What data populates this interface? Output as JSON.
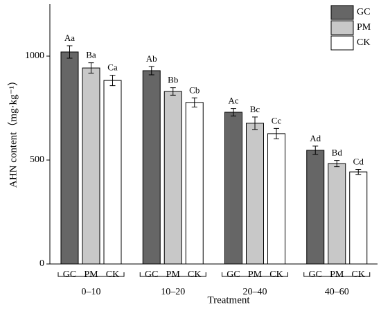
{
  "chart_data": {
    "type": "bar",
    "categories": [
      "0–10",
      "10–20",
      "20–40",
      "40–60"
    ],
    "x_label": "Treatment",
    "y_label": "AHN content（mg·kg⁻¹）",
    "ylim": [
      0,
      1250
    ],
    "yticks": [
      0,
      500,
      1000
    ],
    "series": [
      {
        "name": "GC",
        "color": "#666666",
        "values": [
          1020,
          930,
          730,
          547
        ],
        "errors": [
          30,
          20,
          18,
          20
        ],
        "labels": [
          "Aa",
          "Ab",
          "Ac",
          "Ad"
        ]
      },
      {
        "name": "PM",
        "color": "#c8c8c8",
        "values": [
          943,
          830,
          677,
          483
        ],
        "errors": [
          25,
          18,
          30,
          15
        ],
        "labels": [
          "Ba",
          "Bb",
          "Bc",
          "Bd"
        ]
      },
      {
        "name": "CK",
        "color": "#ffffff",
        "values": [
          883,
          777,
          627,
          443
        ],
        "errors": [
          25,
          22,
          25,
          12
        ],
        "labels": [
          "Ca",
          "Cb",
          "Cc",
          "Cd"
        ]
      }
    ],
    "legend": "top-right"
  }
}
